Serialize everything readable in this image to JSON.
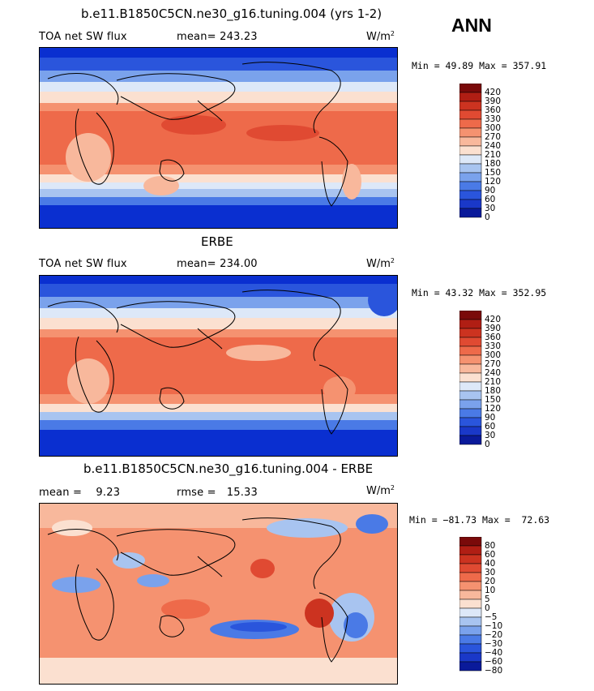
{
  "season": "ANN",
  "panels": [
    {
      "title": "b.e11.B1850C5CN.ne30_g16.tuning.004 (yrs 1-2)",
      "left_label": "TOA net SW flux",
      "center_label": "mean= 243.23",
      "units": "W/m",
      "units_sup": "2",
      "minmax": "Min =  49.89 Max = 357.91",
      "colorbar": {
        "labels": [
          "420",
          "390",
          "360",
          "330",
          "300",
          "270",
          "240",
          "210",
          "180",
          "150",
          "120",
          "90",
          "60",
          "30",
          "0"
        ],
        "colors": [
          "#7a0a0a",
          "#b01e14",
          "#cc3320",
          "#e04a32",
          "#ee6a4a",
          "#f59270",
          "#f8b89c",
          "#fbe0d0",
          "#dde8f8",
          "#a8c4f0",
          "#7aa2ec",
          "#4a7ae6",
          "#2a55dc",
          "#1a38c8",
          "#0a1a9a"
        ]
      }
    },
    {
      "title": "ERBE",
      "left_label": "TOA net SW flux",
      "center_label": "mean= 234.00",
      "units": "W/m",
      "units_sup": "2",
      "minmax": "Min =  43.32 Max = 352.95",
      "colorbar": {
        "labels": [
          "420",
          "390",
          "360",
          "330",
          "300",
          "270",
          "240",
          "210",
          "180",
          "150",
          "120",
          "90",
          "60",
          "30",
          "0"
        ],
        "colors": [
          "#7a0a0a",
          "#b01e14",
          "#cc3320",
          "#e04a32",
          "#ee6a4a",
          "#f59270",
          "#f8b89c",
          "#fbe0d0",
          "#dde8f8",
          "#a8c4f0",
          "#7aa2ec",
          "#4a7ae6",
          "#2a55dc",
          "#1a38c8",
          "#0a1a9a"
        ]
      }
    },
    {
      "title": "b.e11.B1850C5CN.ne30_g16.tuning.004 - ERBE",
      "left_label": "mean =    9.23",
      "center_label": "rmse =   15.33",
      "units": "W/m",
      "units_sup": "2",
      "minmax": "Min = −81.73 Max =  72.63",
      "colorbar": {
        "labels": [
          "80",
          "60",
          "40",
          "30",
          "20",
          "10",
          "5",
          "0",
          "−5",
          "−10",
          "−20",
          "−30",
          "−40",
          "−60",
          "−80"
        ],
        "colors": [
          "#7a0a0a",
          "#b01e14",
          "#cc3320",
          "#e04a32",
          "#ee6a4a",
          "#f59270",
          "#f8b89c",
          "#fbe0d0",
          "#dde8f8",
          "#a8c4f0",
          "#7aa2ec",
          "#4a7ae6",
          "#2a55dc",
          "#1a38c8",
          "#0a1a9a"
        ]
      }
    }
  ],
  "chart_data": [
    {
      "type": "heatmap",
      "title": "b.e11.B1850C5CN.ne30_g16.tuning.004 (yrs 1-2)",
      "variable": "TOA net SW flux",
      "units": "W/m2",
      "mean": 243.23,
      "min": 49.89,
      "max": 357.91,
      "levels": [
        0,
        30,
        60,
        90,
        120,
        150,
        180,
        210,
        240,
        270,
        300,
        330,
        360,
        390,
        420
      ]
    },
    {
      "type": "heatmap",
      "title": "ERBE",
      "variable": "TOA net SW flux",
      "units": "W/m2",
      "mean": 234.0,
      "min": 43.32,
      "max": 352.95,
      "levels": [
        0,
        30,
        60,
        90,
        120,
        150,
        180,
        210,
        240,
        270,
        300,
        330,
        360,
        390,
        420
      ]
    },
    {
      "type": "heatmap",
      "title": "b.e11.B1850C5CN.ne30_g16.tuning.004 - ERBE",
      "units": "W/m2",
      "mean": 9.23,
      "rmse": 15.33,
      "min": -81.73,
      "max": 72.63,
      "levels": [
        -80,
        -60,
        -40,
        -30,
        -20,
        -10,
        -5,
        0,
        5,
        10,
        20,
        30,
        40,
        60,
        80
      ]
    }
  ]
}
